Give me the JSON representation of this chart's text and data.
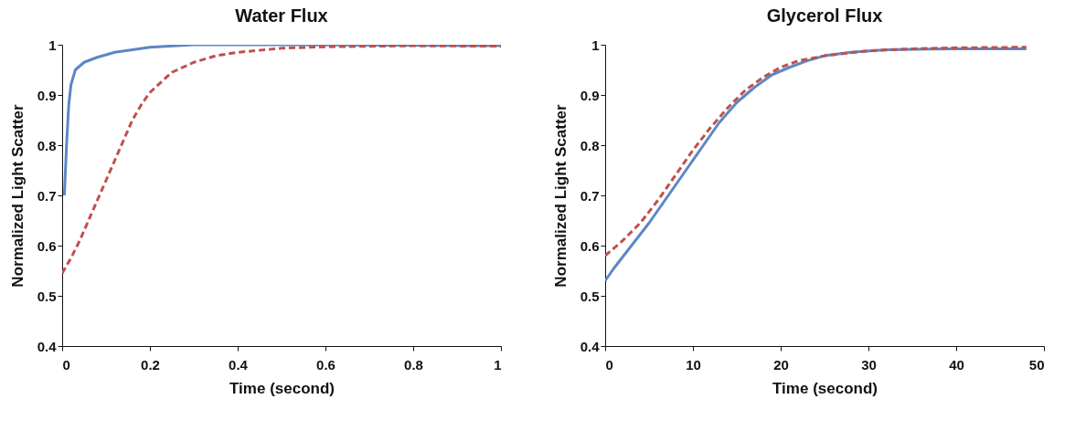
{
  "chart_data": [
    {
      "type": "line",
      "title": "Water Flux",
      "xlabel": "Time (second)",
      "ylabel": "Normalized Light Scatter",
      "xlim": [
        0,
        1
      ],
      "xticks": [
        0,
        0.2,
        0.4,
        0.6,
        0.8,
        1
      ],
      "ylim": [
        0.4,
        1
      ],
      "yticks": [
        0.4,
        0.5,
        0.6,
        0.7,
        0.8,
        0.9,
        1
      ],
      "grid": false,
      "marker": "none",
      "series": [
        {
          "color": "#5b87c5",
          "line_style": "solid",
          "x": [
            0.005,
            0.01,
            0.015,
            0.02,
            0.03,
            0.05,
            0.08,
            0.12,
            0.2,
            0.3,
            0.5,
            0.75,
            1.0
          ],
          "values": [
            0.7,
            0.8,
            0.88,
            0.92,
            0.95,
            0.965,
            0.975,
            0.985,
            0.995,
            1.0,
            1.0,
            0.999,
            0.998
          ]
        },
        {
          "color": "#c0504d",
          "line_style": "dashed",
          "x": [
            0,
            0.02,
            0.04,
            0.06,
            0.08,
            0.1,
            0.12,
            0.14,
            0.16,
            0.18,
            0.2,
            0.25,
            0.3,
            0.35,
            0.4,
            0.5,
            0.6,
            0.8,
            1.0
          ],
          "values": [
            0.545,
            0.575,
            0.61,
            0.65,
            0.69,
            0.73,
            0.77,
            0.81,
            0.85,
            0.88,
            0.905,
            0.945,
            0.965,
            0.978,
            0.985,
            0.993,
            0.996,
            0.998,
            0.997
          ]
        }
      ]
    },
    {
      "type": "line",
      "title": "Glycerol Flux",
      "xlabel": "Time (second)",
      "ylabel": "Normalized Light Scatter",
      "xlim": [
        0,
        50
      ],
      "xticks": [
        0,
        10,
        20,
        30,
        40,
        50
      ],
      "ylim": [
        0.4,
        1
      ],
      "yticks": [
        0.4,
        0.5,
        0.6,
        0.7,
        0.8,
        0.9,
        1
      ],
      "grid": false,
      "marker": "none",
      "series": [
        {
          "color": "#5b87c5",
          "line_style": "solid",
          "x": [
            0,
            1,
            3,
            5,
            7,
            9,
            11,
            13,
            15,
            17,
            19,
            21,
            23,
            25,
            28,
            32,
            40,
            48
          ],
          "values": [
            0.53,
            0.555,
            0.6,
            0.645,
            0.695,
            0.745,
            0.795,
            0.845,
            0.885,
            0.915,
            0.94,
            0.955,
            0.968,
            0.978,
            0.985,
            0.99,
            0.992,
            0.992
          ]
        },
        {
          "color": "#c0504d",
          "line_style": "dashed",
          "x": [
            0,
            2,
            4,
            6,
            8,
            10,
            12,
            14,
            16,
            18,
            20,
            22,
            25,
            30,
            35,
            40,
            48
          ],
          "values": [
            0.58,
            0.61,
            0.645,
            0.69,
            0.74,
            0.79,
            0.835,
            0.875,
            0.91,
            0.935,
            0.955,
            0.968,
            0.978,
            0.988,
            0.992,
            0.994,
            0.995
          ]
        }
      ]
    }
  ]
}
